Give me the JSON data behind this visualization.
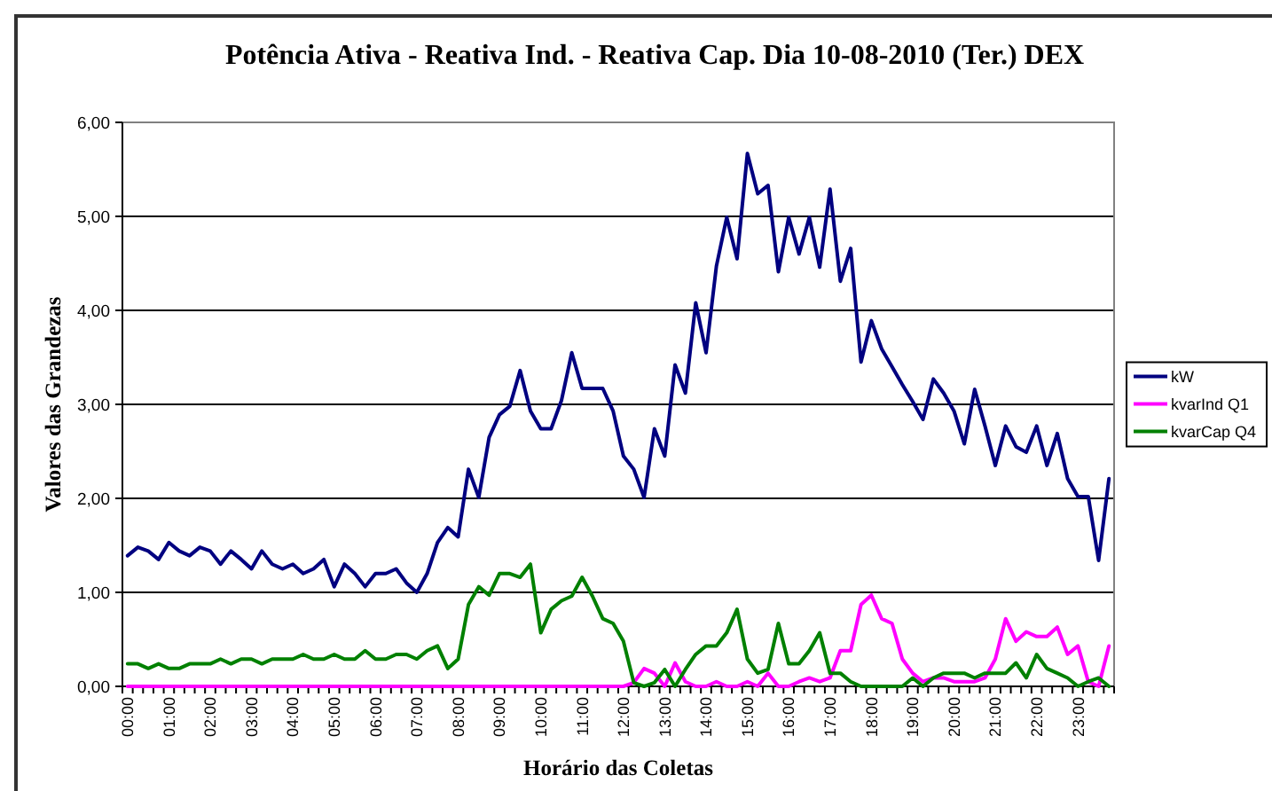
{
  "chart_data": {
    "type": "line",
    "title": "Potência Ativa - Reativa Ind. - Reativa Cap. Dia 10-08-2010 (Ter.) DEX",
    "xlabel": "Horário das Coletas",
    "ylabel": "Valores das Grandezas",
    "categories": [
      "00:00",
      null,
      null,
      null,
      "01:00",
      null,
      null,
      null,
      "02:00",
      null,
      null,
      null,
      "03:00",
      null,
      null,
      null,
      "04:00",
      null,
      null,
      null,
      "05:00",
      null,
      null,
      null,
      "06:00",
      null,
      null,
      null,
      "07:00",
      null,
      null,
      null,
      "08:00",
      null,
      null,
      null,
      "09:00",
      null,
      null,
      null,
      "10:00",
      null,
      null,
      null,
      "11:00",
      null,
      null,
      null,
      "12:00",
      null,
      null,
      null,
      "13:00",
      null,
      null,
      null,
      "14:00",
      null,
      null,
      null,
      "15:00",
      null,
      null,
      null,
      "16:00",
      null,
      null,
      null,
      "17:00",
      null,
      null,
      null,
      "18:00",
      null,
      null,
      null,
      "19:00",
      null,
      null,
      null,
      "20:00",
      null,
      null,
      null,
      "21:00",
      null,
      null,
      null,
      "22:00",
      null,
      null,
      null,
      "23:00",
      null,
      null,
      null
    ],
    "series": [
      {
        "name": "kW",
        "color": "#000080",
        "values": [
          1.39,
          1.48,
          1.44,
          1.35,
          1.53,
          1.44,
          1.39,
          1.48,
          1.44,
          1.3,
          1.44,
          1.35,
          1.25,
          1.44,
          1.3,
          1.25,
          1.3,
          1.2,
          1.25,
          1.35,
          1.06,
          1.3,
          1.2,
          1.06,
          1.2,
          1.2,
          1.25,
          1.1,
          1.0,
          1.2,
          1.53,
          1.69,
          1.59,
          2.31,
          2.01,
          2.65,
          2.89,
          2.98,
          3.36,
          2.93,
          2.74,
          2.74,
          3.04,
          3.55,
          3.17,
          3.17,
          3.17,
          2.93,
          2.45,
          2.31,
          2.01,
          2.74,
          2.45,
          3.42,
          3.12,
          4.08,
          3.55,
          4.47,
          4.99,
          4.55,
          5.67,
          5.24,
          5.33,
          4.41,
          4.99,
          4.6,
          4.99,
          4.46,
          5.29,
          4.31,
          4.66,
          3.45,
          3.89,
          3.59,
          3.4,
          3.21,
          3.03,
          2.84,
          3.27,
          3.12,
          2.93,
          2.58,
          3.16,
          2.77,
          2.35,
          2.77,
          2.55,
          2.49,
          2.77,
          2.35,
          2.69,
          2.21,
          2.02,
          2.02,
          1.34,
          2.21
        ]
      },
      {
        "name": "kvarInd Q1",
        "color": "#ff00ff",
        "values": [
          0,
          0,
          0,
          0,
          0,
          0,
          0,
          0,
          0,
          0,
          0,
          0,
          0,
          0,
          0,
          0,
          0,
          0,
          0,
          0,
          0,
          0,
          0,
          0,
          0,
          0,
          0,
          0,
          0,
          0,
          0,
          0,
          0,
          0,
          0,
          0,
          0,
          0,
          0,
          0,
          0,
          0,
          0,
          0,
          0,
          0,
          0,
          0,
          0,
          0.04,
          0.19,
          0.14,
          0,
          0.25,
          0.05,
          0,
          0,
          0.05,
          0,
          0,
          0.05,
          0,
          0.14,
          0,
          0,
          0.05,
          0.09,
          0.05,
          0.09,
          0.38,
          0.38,
          0.87,
          0.97,
          0.72,
          0.67,
          0.29,
          0.14,
          0.05,
          0.09,
          0.09,
          0.05,
          0.05,
          0.05,
          0.09,
          0.29,
          0.72,
          0.48,
          0.58,
          0.53,
          0.53,
          0.63,
          0.34,
          0.43,
          0.05,
          0,
          0.43
        ]
      },
      {
        "name": "kvarCap Q4",
        "color": "#008000",
        "values": [
          0.24,
          0.24,
          0.19,
          0.24,
          0.19,
          0.19,
          0.24,
          0.24,
          0.24,
          0.29,
          0.24,
          0.29,
          0.29,
          0.24,
          0.29,
          0.29,
          0.29,
          0.34,
          0.29,
          0.29,
          0.34,
          0.29,
          0.29,
          0.38,
          0.29,
          0.29,
          0.34,
          0.34,
          0.29,
          0.38,
          0.43,
          0.19,
          0.29,
          0.87,
          1.06,
          0.97,
          1.2,
          1.2,
          1.16,
          1.3,
          0.57,
          0.82,
          0.91,
          0.96,
          1.16,
          0.96,
          0.72,
          0.67,
          0.48,
          0.04,
          0,
          0.04,
          0.18,
          0,
          0.18,
          0.34,
          0.43,
          0.43,
          0.57,
          0.82,
          0.29,
          0.14,
          0.18,
          0.67,
          0.24,
          0.24,
          0.38,
          0.57,
          0.14,
          0.14,
          0.05,
          0,
          0,
          0,
          0,
          0,
          0.09,
          0,
          0.09,
          0.14,
          0.14,
          0.14,
          0.09,
          0.14,
          0.14,
          0.14,
          0.25,
          0.09,
          0.34,
          0.19,
          0.14,
          0.09,
          0,
          0.05,
          0.09,
          0
        ]
      }
    ],
    "ylim": [
      0,
      6
    ],
    "yticks": [
      {
        "value": 0,
        "label": "0,00"
      },
      {
        "value": 1,
        "label": "1,00"
      },
      {
        "value": 2,
        "label": "2,00"
      },
      {
        "value": 3,
        "label": "3,00"
      },
      {
        "value": 4,
        "label": "4,00"
      },
      {
        "value": 5,
        "label": "5,00"
      },
      {
        "value": 6,
        "label": "6,00"
      }
    ],
    "grid": "y",
    "legend": "right",
    "line_style": "solid"
  }
}
